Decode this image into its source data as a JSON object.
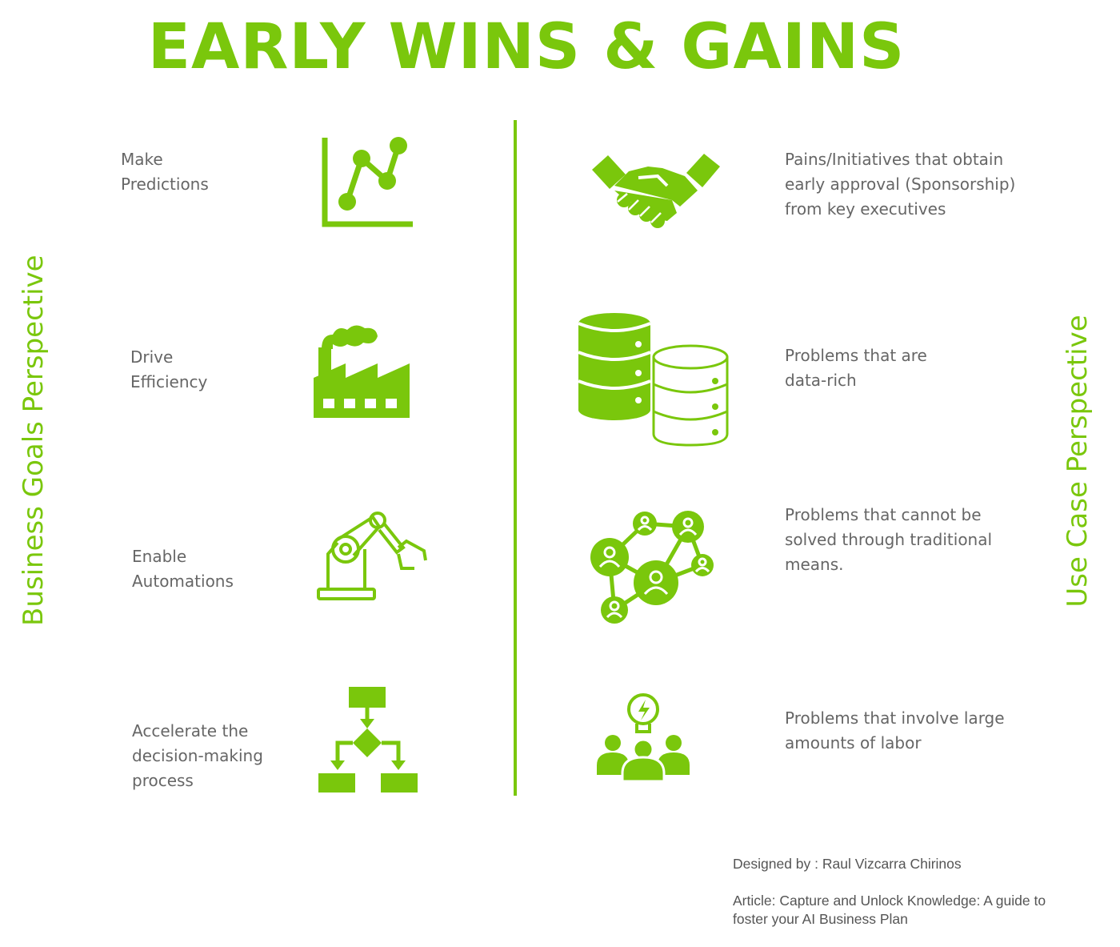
{
  "title": "EARLY WINS & GAINS",
  "side_labels": {
    "left": "Business Goals  Perspective",
    "right": "Use Case Perspective"
  },
  "left_items": [
    {
      "text": "Make\nPredictions",
      "icon": "line-chart-icon"
    },
    {
      "text": "Drive\nEfficiency",
      "icon": "factory-icon"
    },
    {
      "text": "Enable\nAutomations",
      "icon": "robotic-arm-icon"
    },
    {
      "text": "Accelerate the\ndecision-making\nprocess",
      "icon": "flowchart-icon"
    }
  ],
  "right_items": [
    {
      "text": "Pains/Initiatives that obtain\nearly approval (Sponsorship)\nfrom key executives",
      "icon": "handshake-icon"
    },
    {
      "text": "Problems that are\ndata-rich",
      "icon": "database-icon"
    },
    {
      "text": "Problems that cannot be\nsolved through traditional\nmeans.",
      "icon": "people-network-icon"
    },
    {
      "text": "Problems that involve large\namounts of labor",
      "icon": "team-idea-icon"
    }
  ],
  "footer": {
    "designed_by": "Designed by  : Raul Vizcarra Chirinos",
    "article": "Article: Capture and Unlock Knowledge: A guide to\nfoster your AI Business Plan"
  },
  "colors": {
    "accent": "#7ac70c",
    "text": "#666666"
  }
}
